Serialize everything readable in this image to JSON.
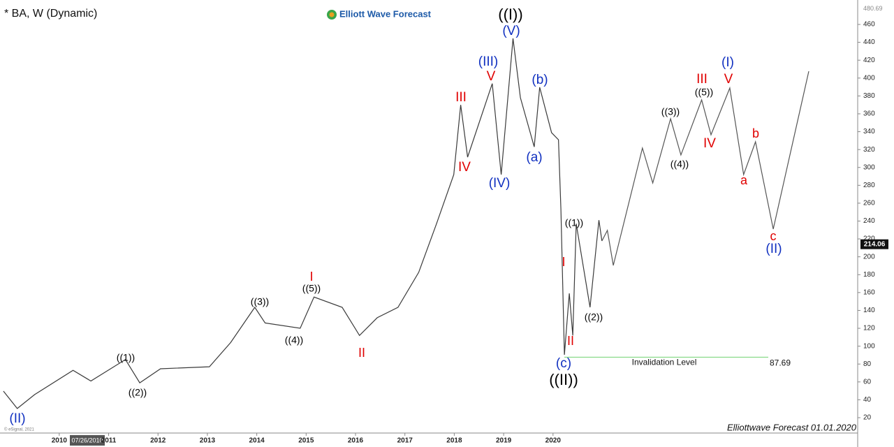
{
  "chart_data": {
    "type": "line",
    "title": "* BA, W (Dynamic)",
    "logo": "Elliott Wave Forecast",
    "footer": "Elliottwave Forecast 01.01.2020",
    "copyright": "© eSignal, 2021",
    "cursor_date": "07/26/2010",
    "xlim": [
      2008.8,
      2026.17
    ],
    "xticks": [
      2010,
      2011,
      2012,
      2013,
      2014,
      2015,
      2016,
      2017,
      2018,
      2019,
      2020
    ],
    "ylim": [
      2.8,
      481.1
    ],
    "yticks": [
      20,
      40,
      60,
      80,
      100,
      120,
      140,
      160,
      180,
      200,
      220,
      240,
      260,
      280,
      300,
      320,
      340,
      360,
      380,
      400,
      420,
      440,
      460
    ],
    "axis_top_value": 480.69,
    "last_value": 214.06,
    "series": [
      {
        "color": "#3a3a3a",
        "x": [
          2008.87,
          2009.15,
          2009.5,
          2010.28,
          2010.64,
          2011.34,
          2011.63,
          2012.05,
          2013.04,
          2013.47,
          2013.96,
          2014.17,
          2014.88,
          2015.16,
          2015.73,
          2016.08,
          2016.44,
          2016.86,
          2017.28,
          2017.64,
          2017.99,
          2018.13,
          2018.27,
          2018.77,
          2018.95,
          2019.19,
          2019.34,
          2019.62,
          2019.73,
          2019.97,
          2020.11,
          2020.16,
          2020.23,
          2020.33,
          2020.4,
          2020.47,
          2020.75,
          2020.93,
          2020.99
        ],
        "values": [
          49.7,
          30.2,
          45.8,
          73,
          61,
          85,
          59,
          74.7,
          77,
          104,
          143.5,
          126,
          120,
          155,
          143.5,
          112,
          131.8,
          143.5,
          182.6,
          237,
          292,
          370,
          311.5,
          393.8,
          292,
          444.4,
          378,
          323,
          389.7,
          338.9,
          331,
          253,
          90.3,
          159,
          112,
          237,
          143.5,
          241,
          217.7
        ]
      },
      {
        "color": "#555555",
        "x": [
          2020.99,
          2021.1,
          2021.22,
          2021.81,
          2022.02,
          2022.38,
          2022.59,
          2023.01,
          2023.2,
          2023.58,
          2023.86,
          2024.1,
          2024.46,
          2025.18
        ],
        "values": [
          217.7,
          229.5,
          190.4,
          321.7,
          282.6,
          354.5,
          313.9,
          375.6,
          336.5,
          388.9,
          292,
          328.7,
          231,
          407.6
        ]
      }
    ],
    "invalidation": {
      "label": "Invalidation Level",
      "value": 87.69,
      "color": "#6fd36f"
    },
    "annotations": [
      {
        "text": "((I))",
        "color": "#000000"
      },
      {
        "text": "(V)",
        "color": "#1030c0"
      },
      {
        "text": "(III)",
        "color": "#1030c0"
      },
      {
        "text": "V",
        "color": "#e00000"
      },
      {
        "text": "III",
        "color": "#e00000"
      },
      {
        "text": "IV",
        "color": "#e00000"
      },
      {
        "text": "(IV)",
        "color": "#1030c0"
      },
      {
        "text": "(b)",
        "color": "#1030c0"
      },
      {
        "text": "(a)",
        "color": "#1030c0"
      },
      {
        "text": "((1))",
        "color": "#000000"
      },
      {
        "text": "I",
        "color": "#e00000"
      },
      {
        "text": "II",
        "color": "#e00000"
      },
      {
        "text": "((2))",
        "color": "#000000"
      },
      {
        "text": "(c)",
        "color": "#1030c0"
      },
      {
        "text": "((II))",
        "color": "#000000"
      },
      {
        "text": "I",
        "color": "#e00000"
      },
      {
        "text": "((5))",
        "color": "#000000"
      },
      {
        "text": "((3))",
        "color": "#000000"
      },
      {
        "text": "((4))",
        "color": "#000000"
      },
      {
        "text": "II",
        "color": "#e00000"
      },
      {
        "text": "((1))",
        "color": "#000000"
      },
      {
        "text": "((2))",
        "color": "#000000"
      },
      {
        "text": "(II)",
        "color": "#1030c0"
      },
      {
        "text": "(I)",
        "color": "#1030c0"
      },
      {
        "text": "V",
        "color": "#e00000"
      },
      {
        "text": "III",
        "color": "#e00000"
      },
      {
        "text": "((5))",
        "color": "#000000"
      },
      {
        "text": "((3))",
        "color": "#000000"
      },
      {
        "text": "((4))",
        "color": "#000000"
      },
      {
        "text": "IV",
        "color": "#e00000"
      },
      {
        "text": "a",
        "color": "#e00000"
      },
      {
        "text": "b",
        "color": "#e00000"
      },
      {
        "text": "c",
        "color": "#e00000"
      },
      {
        "text": "(II)",
        "color": "#1030c0"
      }
    ]
  }
}
